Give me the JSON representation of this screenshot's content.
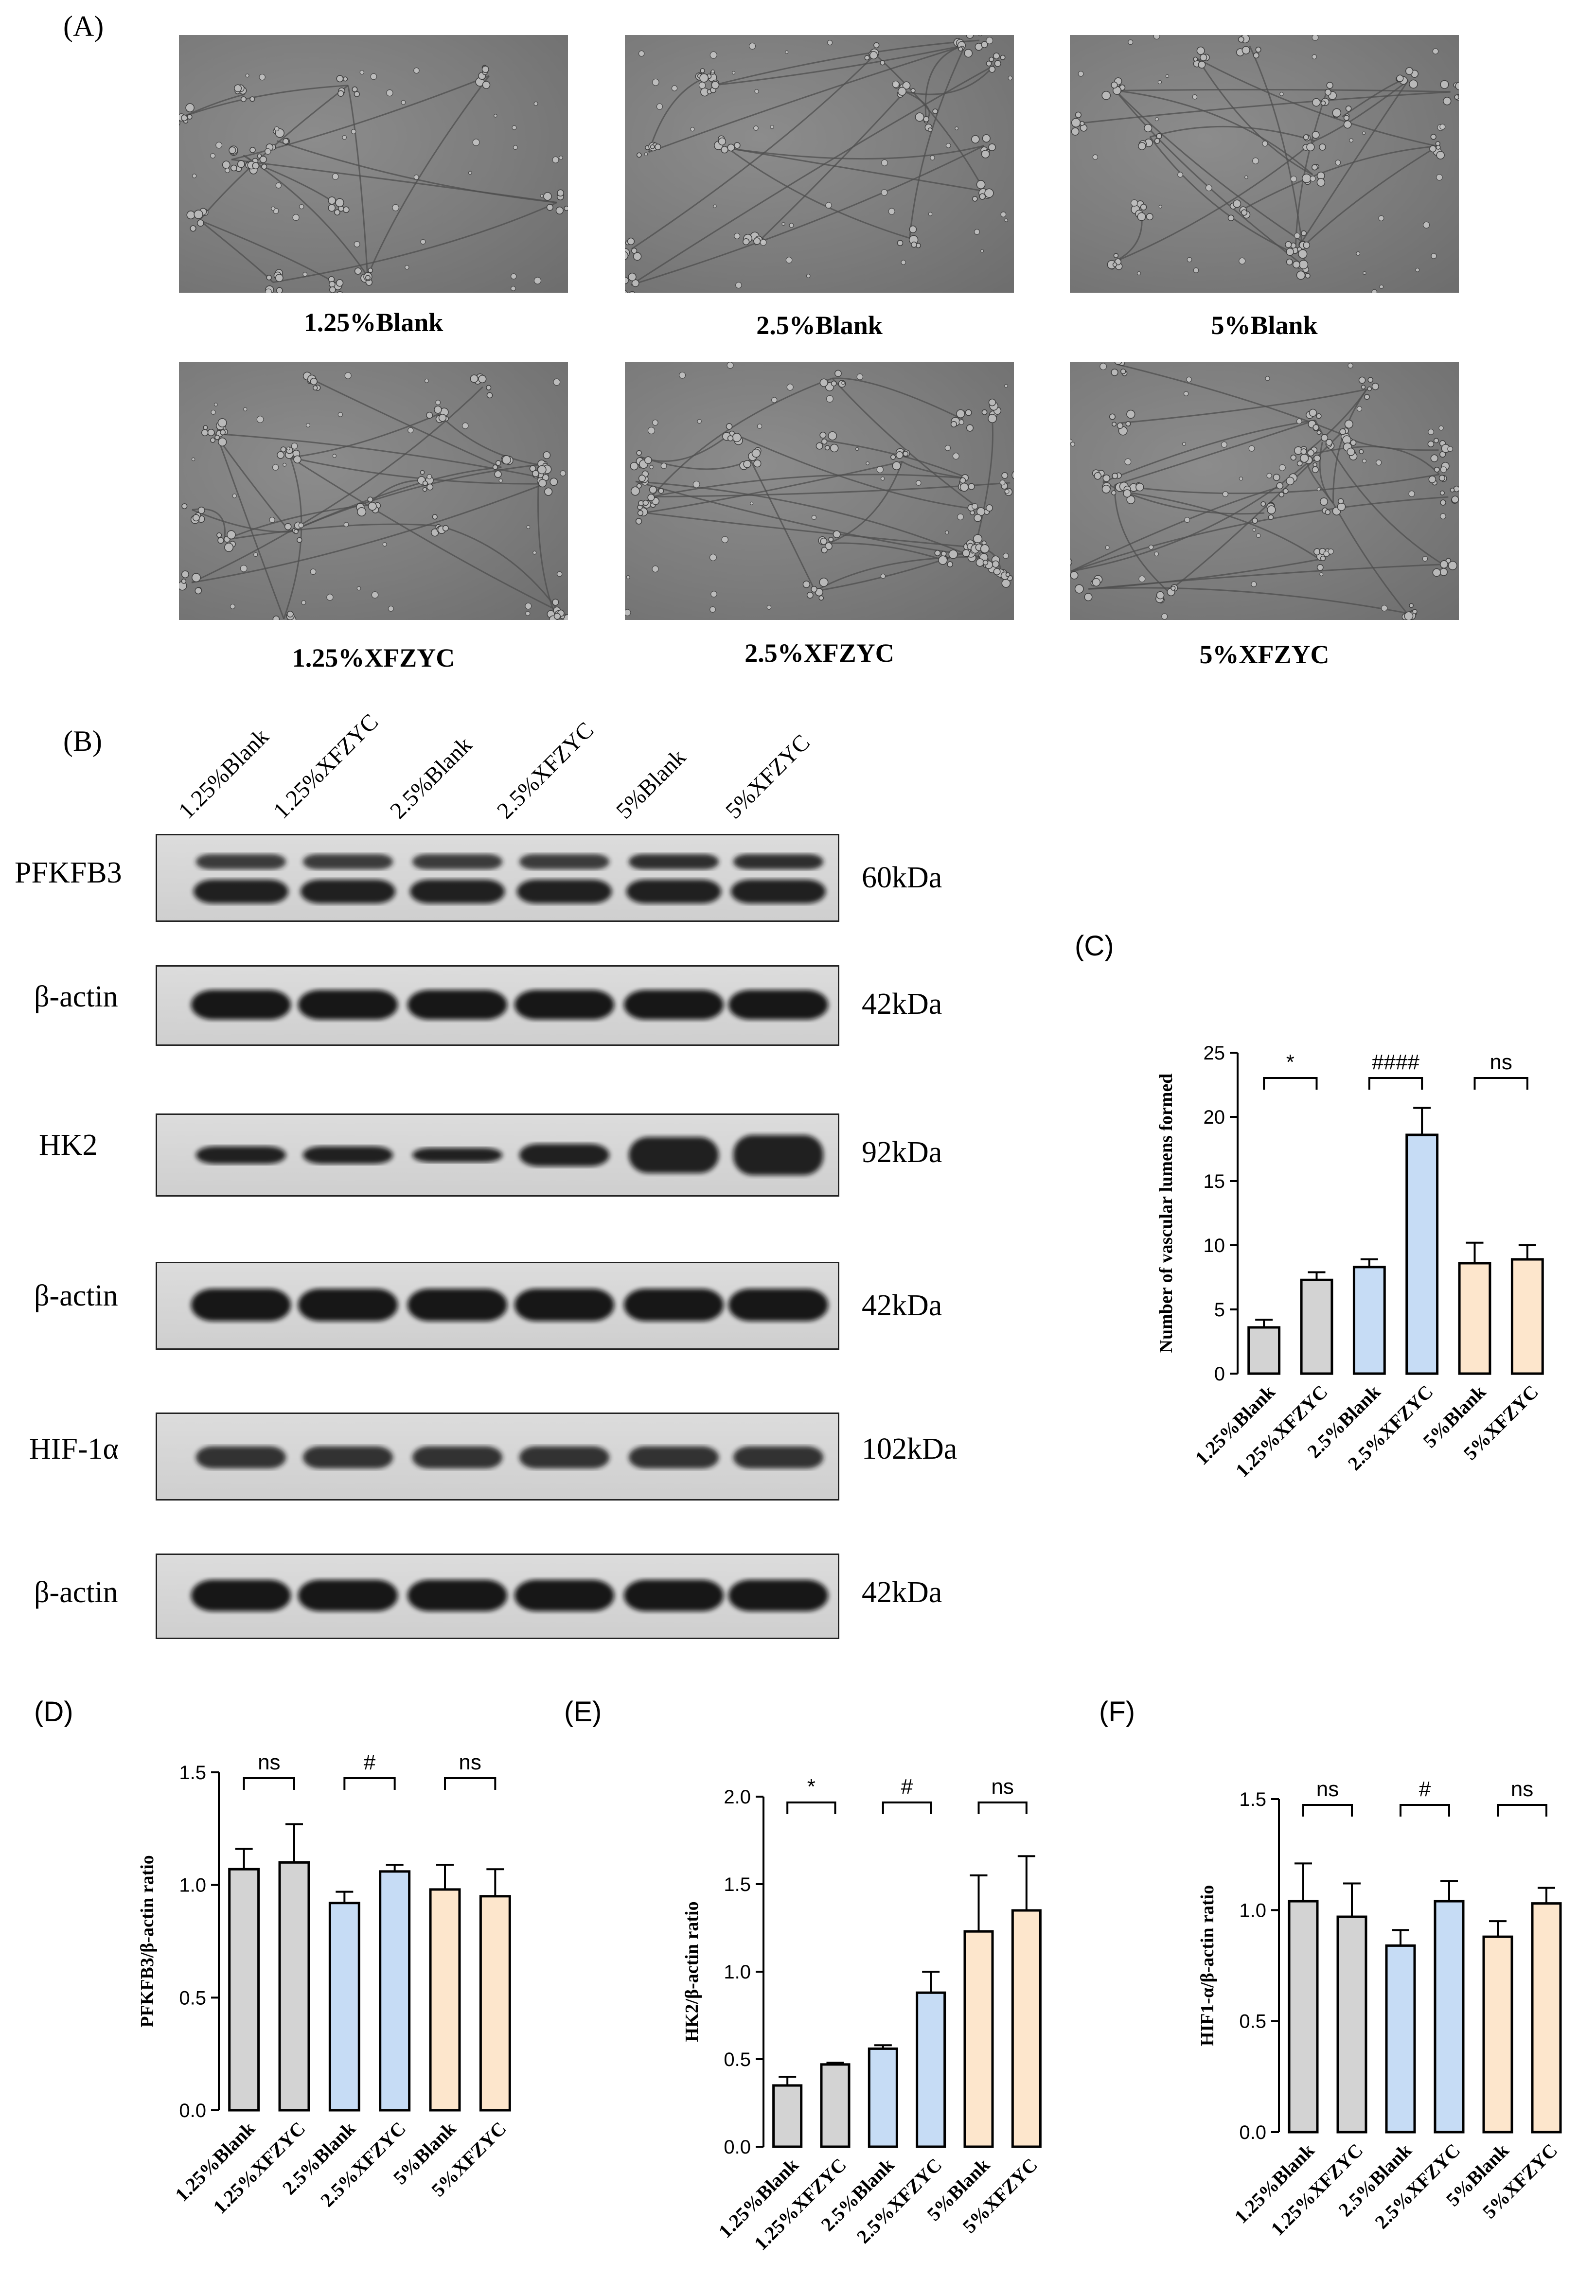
{
  "panel_a": {
    "letter": "(A)",
    "images": [
      {
        "label": "1.25%Blank"
      },
      {
        "label": "2.5%Blank"
      },
      {
        "label": "5%Blank"
      },
      {
        "label": "1.25%XFZYC"
      },
      {
        "label": "2.5%XFZYC"
      },
      {
        "label": "5%XFZYC"
      }
    ]
  },
  "panel_b": {
    "letter": "(B)",
    "lanes": [
      "1.25%Blank",
      "1.25%XFZYC",
      "2.5%Blank",
      "2.5%XFZYC",
      "5%Blank",
      "5%XFZYC"
    ],
    "blots": [
      {
        "protein": "PFKFB3",
        "size": "60kDa"
      },
      {
        "protein": "β-actin",
        "size": "42kDa"
      },
      {
        "protein": "HK2",
        "size": "92kDa"
      },
      {
        "protein": "β-actin",
        "size": "42kDa"
      },
      {
        "protein": "HIF-1α",
        "size": "102kDa"
      },
      {
        "protein": "β-actin",
        "size": "42kDa"
      }
    ]
  },
  "colors": {
    "gray": "#d3d3d3",
    "blue": "#c6dcf5",
    "peach": "#fde6cc",
    "edge": "#000000"
  },
  "chart_data": [
    {
      "panel": "(C)",
      "type": "bar",
      "categories": [
        "1.25%Blank",
        "1.25%XFZYC",
        "2.5%Blank",
        "2.5%XFZYC",
        "5%Blank",
        "5%XFZYC"
      ],
      "values": [
        3.6,
        7.3,
        8.3,
        18.6,
        8.6,
        8.9
      ],
      "errors": [
        0.6,
        0.6,
        0.6,
        2.1,
        1.6,
        1.1
      ],
      "ylabel": "Number of vascular lumens formed",
      "ylim": [
        0,
        25
      ],
      "yticks": [
        "0",
        "5",
        "10",
        "15",
        "20",
        "25"
      ],
      "significance": [
        "*",
        "####",
        "ns"
      ]
    },
    {
      "panel": "(D)",
      "type": "bar",
      "categories": [
        "1.25%Blank",
        "1.25%XFZYC",
        "2.5%Blank",
        "2.5%XFZYC",
        "5%Blank",
        "5%XFZYC"
      ],
      "values": [
        1.07,
        1.1,
        0.92,
        1.06,
        0.98,
        0.95
      ],
      "errors": [
        0.09,
        0.17,
        0.05,
        0.03,
        0.11,
        0.12
      ],
      "ylabel": "PFKFB3/β-actin ratio",
      "ylim": [
        0,
        1.5
      ],
      "yticks": [
        "0.0",
        "0.5",
        "1.0",
        "1.5"
      ],
      "significance": [
        "ns",
        "#",
        "ns"
      ]
    },
    {
      "panel": "(E)",
      "type": "bar",
      "categories": [
        "1.25%Blank",
        "1.25%XFZYC",
        "2.5%Blank",
        "2.5%XFZYC",
        "5%Blank",
        "5%XFZYC"
      ],
      "values": [
        0.35,
        0.47,
        0.56,
        0.88,
        1.23,
        1.35
      ],
      "errors": [
        0.05,
        0.01,
        0.02,
        0.12,
        0.32,
        0.31
      ],
      "ylabel": "HK2/β-actin ratio",
      "ylim": [
        0,
        2.0
      ],
      "yticks": [
        "0.0",
        "0.5",
        "1.0",
        "1.5",
        "2.0"
      ],
      "significance": [
        "*",
        "#",
        "ns"
      ]
    },
    {
      "panel": "(F)",
      "type": "bar",
      "categories": [
        "1.25%Blank",
        "1.25%XFZYC",
        "2.5%Blank",
        "2.5%XFZYC",
        "5%Blank",
        "5%XFZYC"
      ],
      "values": [
        1.04,
        0.97,
        0.84,
        1.04,
        0.88,
        1.03
      ],
      "errors": [
        0.17,
        0.15,
        0.07,
        0.09,
        0.07,
        0.07
      ],
      "ylabel": "HIF1-α/β-actin ratio",
      "ylim": [
        0,
        1.5
      ],
      "yticks": [
        "0.0",
        "0.5",
        "1.0",
        "1.5"
      ],
      "significance": [
        "ns",
        "#",
        "ns"
      ]
    }
  ]
}
